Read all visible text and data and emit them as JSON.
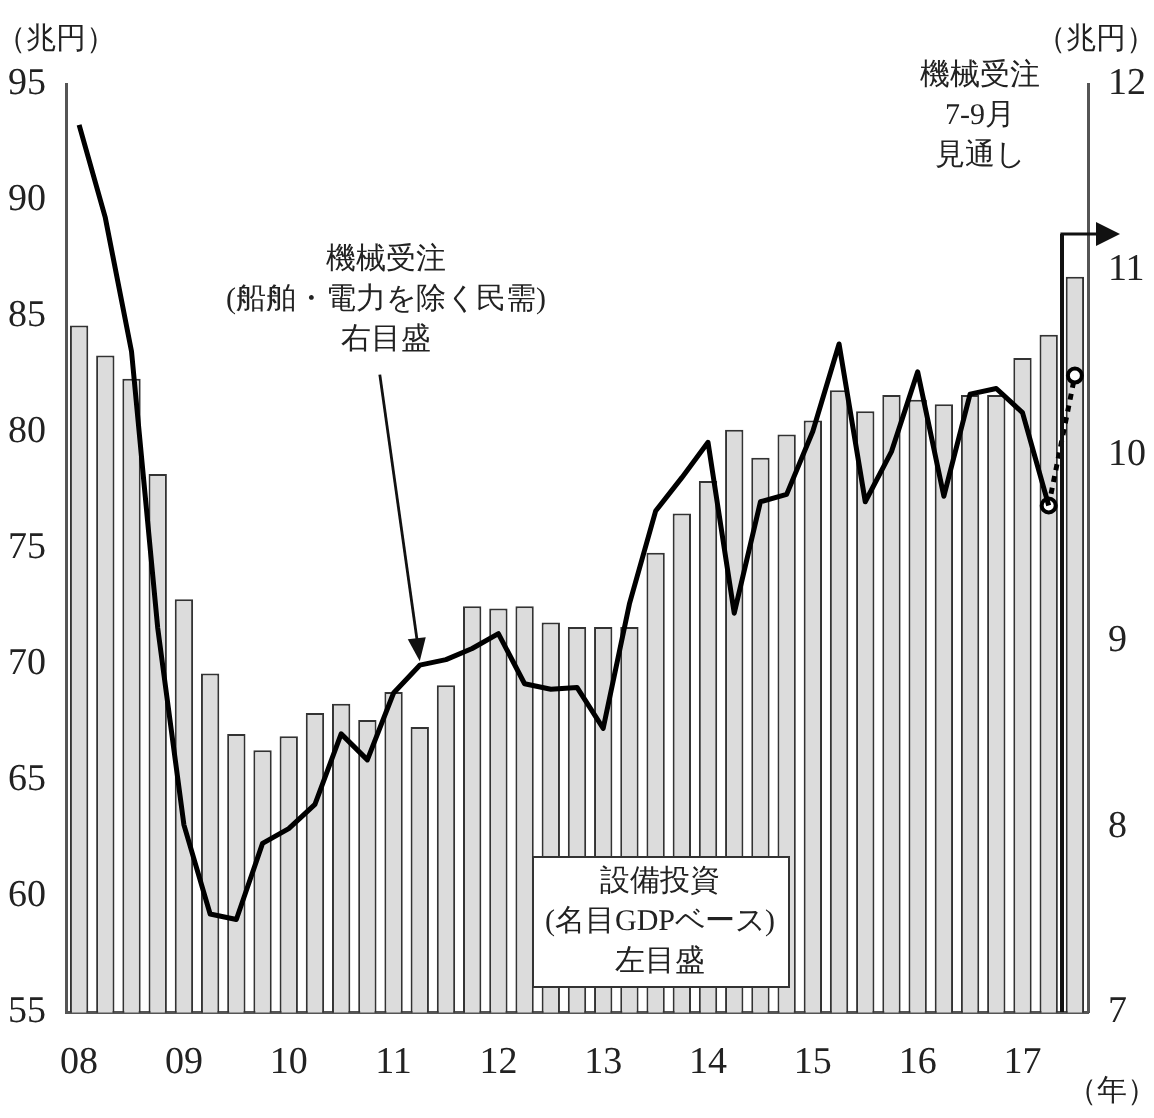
{
  "chart_data": {
    "type": "bar",
    "ylabel": "（兆円）",
    "y2label": "（兆円）",
    "xlabel": "（年）",
    "categories": [
      "08",
      null,
      null,
      null,
      "09",
      null,
      null,
      null,
      "10",
      null,
      null,
      null,
      "11",
      null,
      null,
      null,
      "12",
      null,
      null,
      null,
      "13",
      null,
      null,
      null,
      "14",
      null,
      null,
      null,
      "15",
      null,
      null,
      null,
      "16",
      null,
      null,
      null,
      "17",
      null,
      null
    ],
    "series": [
      {
        "color": "#dcdcdc",
        "values": [
          84.6,
          83.3,
          82.3,
          78.2,
          72.8,
          69.6,
          67.0,
          66.3,
          66.9,
          67.9,
          68.3,
          67.6,
          68.8,
          67.3,
          69.1,
          72.5,
          72.4,
          72.5,
          71.8,
          71.6,
          71.6,
          71.6,
          74.8,
          76.5,
          77.9,
          80.1,
          78.9,
          79.9,
          80.5,
          81.8,
          80.9,
          81.6,
          81.4,
          81.2,
          81.6,
          81.6,
          83.2,
          84.2,
          86.7
        ]
      },
      {
        "type": "line",
        "axis": "y2",
        "color": "#000000",
        "marker": "none",
        "line_style": "solid",
        "values": [
          11.78,
          11.28,
          10.56,
          9.07,
          8.01,
          7.53,
          7.5,
          7.91,
          7.99,
          8.12,
          8.5,
          8.36,
          8.72,
          8.87,
          8.9,
          8.96,
          9.04,
          8.77,
          8.74,
          8.75,
          8.53,
          9.2,
          9.7,
          9.88,
          10.07,
          9.15,
          9.75,
          9.79,
          10.13,
          10.6,
          9.75,
          10.02,
          10.45,
          9.78,
          10.33,
          10.36,
          10.23,
          9.73,
          null
        ]
      },
      {
        "type": "line",
        "axis": "y2",
        "color": "#000000",
        "marker": "circle",
        "line_style": "dotted",
        "values": [
          null,
          null,
          null,
          null,
          null,
          null,
          null,
          null,
          null,
          null,
          null,
          null,
          null,
          null,
          null,
          null,
          null,
          null,
          null,
          null,
          null,
          null,
          null,
          null,
          null,
          null,
          null,
          null,
          null,
          null,
          null,
          null,
          null,
          null,
          null,
          null,
          null,
          9.73,
          10.43
        ]
      }
    ],
    "ylim": [
      55,
      95
    ],
    "yticks": [
      55,
      60,
      65,
      70,
      75,
      80,
      85,
      90,
      95
    ],
    "y2lim": [
      7,
      12
    ],
    "y2ticks": [
      7,
      8,
      9,
      10,
      11,
      12
    ],
    "grid": false,
    "legend": false,
    "annotations": [
      "機械受注(船舶・電力を除く民需)右目盛",
      "設備投資(名目GDPベース)左目盛",
      "機械受注7-9月見通し"
    ]
  }
}
